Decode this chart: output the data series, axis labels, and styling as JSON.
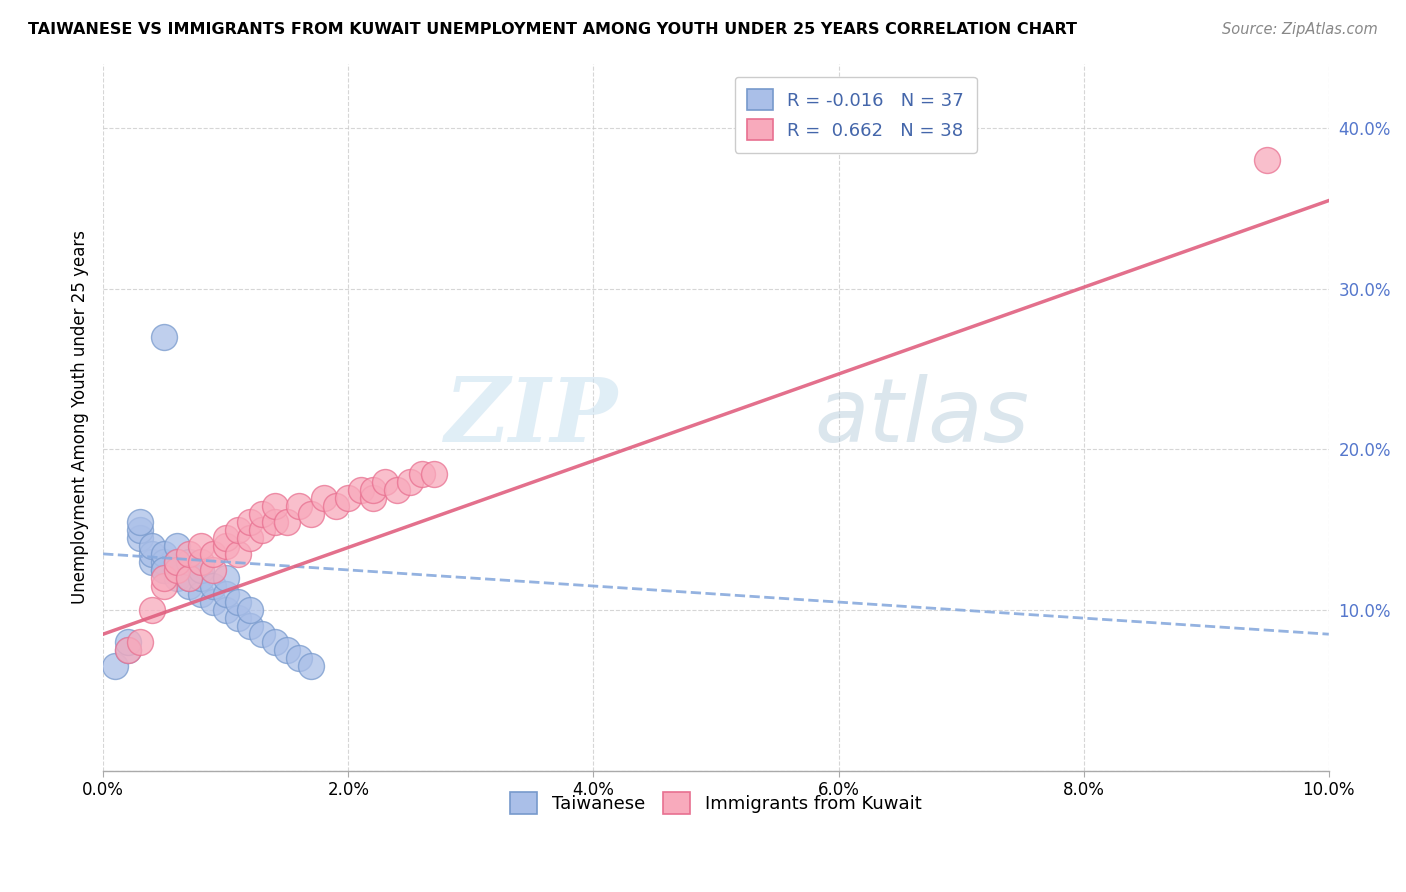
{
  "title": "TAIWANESE VS IMMIGRANTS FROM KUWAIT UNEMPLOYMENT AMONG YOUTH UNDER 25 YEARS CORRELATION CHART",
  "source": "Source: ZipAtlas.com",
  "ylabel": "Unemployment Among Youth under 25 years",
  "xlim": [
    0.0,
    0.1
  ],
  "ylim": [
    0.0,
    0.44
  ],
  "legend_labels": [
    "Taiwanese",
    "Immigrants from Kuwait"
  ],
  "R_taiwanese": -0.016,
  "N_taiwanese": 37,
  "R_kuwait": 0.662,
  "N_kuwait": 38,
  "watermark_zip": "ZIP",
  "watermark_atlas": "atlas",
  "blue_scatter_face": "#AABFE8",
  "blue_scatter_edge": "#7799CC",
  "pink_scatter_face": "#F8AABC",
  "pink_scatter_edge": "#E87090",
  "blue_line_color": "#88AADD",
  "pink_line_color": "#E06080",
  "y_tick_color": "#5577CC",
  "taiwanese_x": [
    0.001,
    0.002,
    0.002,
    0.003,
    0.003,
    0.003,
    0.004,
    0.004,
    0.004,
    0.005,
    0.005,
    0.005,
    0.005,
    0.006,
    0.006,
    0.006,
    0.007,
    0.007,
    0.007,
    0.008,
    0.008,
    0.008,
    0.009,
    0.009,
    0.01,
    0.01,
    0.01,
    0.011,
    0.011,
    0.012,
    0.012,
    0.013,
    0.014,
    0.015,
    0.016,
    0.017,
    0.005
  ],
  "taiwanese_y": [
    0.065,
    0.075,
    0.08,
    0.145,
    0.15,
    0.155,
    0.13,
    0.135,
    0.14,
    0.125,
    0.13,
    0.135,
    0.125,
    0.12,
    0.13,
    0.14,
    0.115,
    0.12,
    0.13,
    0.11,
    0.12,
    0.125,
    0.105,
    0.115,
    0.1,
    0.11,
    0.12,
    0.095,
    0.105,
    0.09,
    0.1,
    0.085,
    0.08,
    0.075,
    0.07,
    0.065,
    0.27
  ],
  "kuwait_x": [
    0.002,
    0.003,
    0.004,
    0.005,
    0.005,
    0.006,
    0.006,
    0.007,
    0.007,
    0.008,
    0.008,
    0.009,
    0.009,
    0.01,
    0.01,
    0.011,
    0.011,
    0.012,
    0.012,
    0.013,
    0.013,
    0.014,
    0.014,
    0.015,
    0.016,
    0.017,
    0.018,
    0.019,
    0.02,
    0.021,
    0.022,
    0.022,
    0.023,
    0.024,
    0.025,
    0.026,
    0.027,
    0.095
  ],
  "kuwait_y": [
    0.075,
    0.08,
    0.1,
    0.115,
    0.12,
    0.125,
    0.13,
    0.12,
    0.135,
    0.13,
    0.14,
    0.125,
    0.135,
    0.14,
    0.145,
    0.135,
    0.15,
    0.145,
    0.155,
    0.15,
    0.16,
    0.155,
    0.165,
    0.155,
    0.165,
    0.16,
    0.17,
    0.165,
    0.17,
    0.175,
    0.17,
    0.175,
    0.18,
    0.175,
    0.18,
    0.185,
    0.185,
    0.38
  ],
  "tw_line_x": [
    0.0,
    0.1
  ],
  "tw_line_y": [
    0.135,
    0.085
  ],
  "kw_line_x": [
    0.0,
    0.1
  ],
  "kw_line_y": [
    0.085,
    0.355
  ]
}
